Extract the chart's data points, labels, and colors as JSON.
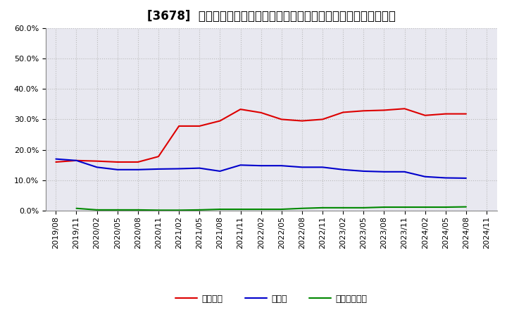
{
  "title": "[3678]  自己資本、のれん、繰延税金資産の総資産に対する比率の推移",
  "ylim": [
    0.0,
    0.6
  ],
  "yticks": [
    0.0,
    0.1,
    0.2,
    0.3,
    0.4,
    0.5,
    0.6
  ],
  "x_labels": [
    "2019/08",
    "2019/11",
    "2020/02",
    "2020/05",
    "2020/08",
    "2020/11",
    "2021/02",
    "2021/05",
    "2021/08",
    "2021/11",
    "2022/02",
    "2022/05",
    "2022/08",
    "2022/11",
    "2023/02",
    "2023/05",
    "2023/08",
    "2023/11",
    "2024/02",
    "2024/05",
    "2024/08",
    "2024/11"
  ],
  "jikoshihon": [
    0.16,
    0.165,
    0.163,
    0.16,
    0.16,
    0.178,
    0.278,
    0.278,
    0.295,
    0.333,
    0.322,
    0.3,
    0.295,
    0.3,
    0.323,
    0.328,
    0.33,
    0.335,
    0.313,
    0.318,
    0.318,
    null
  ],
  "noren": [
    0.17,
    0.165,
    0.143,
    0.135,
    0.135,
    0.137,
    0.138,
    0.14,
    0.13,
    0.15,
    0.148,
    0.148,
    0.143,
    0.143,
    0.135,
    0.13,
    0.128,
    0.128,
    0.112,
    0.108,
    0.107,
    null
  ],
  "kurinoze": [
    null,
    0.008,
    0.003,
    0.003,
    0.003,
    0.002,
    0.002,
    0.003,
    0.005,
    0.005,
    0.005,
    0.005,
    0.008,
    0.01,
    0.01,
    0.01,
    0.012,
    0.012,
    0.012,
    0.012,
    0.013,
    null
  ],
  "line_color_jikoshihon": "#dd0000",
  "line_color_noren": "#0000cc",
  "line_color_kurinoze": "#008800",
  "legend_label_jikoshihon": "自己資本",
  "legend_label_noren": "のれん",
  "legend_label_kurinoze": "繰延税金資産",
  "background_color": "#ffffff",
  "plot_bg_color": "#e8e8f0",
  "grid_color": "#bbbbbb",
  "title_fontsize": 12,
  "tick_fontsize": 8,
  "legend_fontsize": 9
}
